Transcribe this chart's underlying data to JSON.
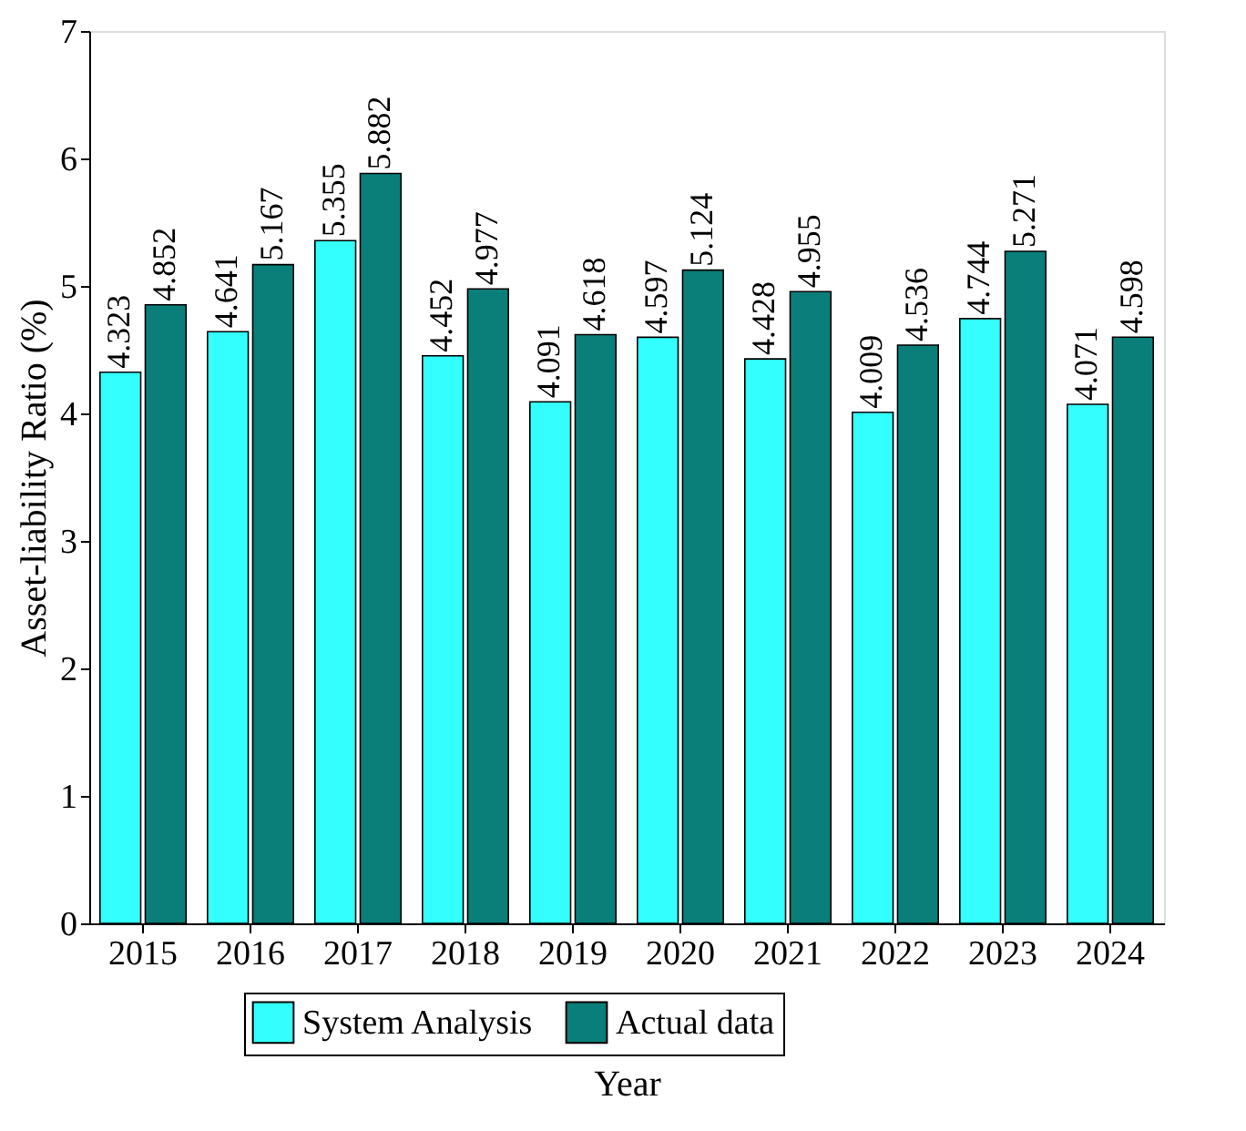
{
  "chart_data": {
    "type": "bar",
    "xlabel": "Year",
    "ylabel": "Asset-liability Ratio (%)",
    "categories": [
      "2015",
      "2016",
      "2017",
      "2018",
      "2019",
      "2020",
      "2021",
      "2022",
      "2023",
      "2024"
    ],
    "series": [
      {
        "name": "System Analysis",
        "color": "#33ffff",
        "values": [
          4.323,
          4.641,
          5.355,
          4.452,
          4.091,
          4.597,
          4.428,
          4.009,
          4.744,
          4.071
        ]
      },
      {
        "name": "Actual data",
        "color": "#0a7f7a",
        "values": [
          4.852,
          5.167,
          5.882,
          4.977,
          4.618,
          5.124,
          4.955,
          4.536,
          5.271,
          4.598
        ]
      }
    ],
    "ylim": [
      0,
      7
    ],
    "yticks": [
      0,
      1,
      2,
      3,
      4,
      5,
      6,
      7
    ],
    "grid": false,
    "legend": "bottom",
    "data_labels": true
  }
}
